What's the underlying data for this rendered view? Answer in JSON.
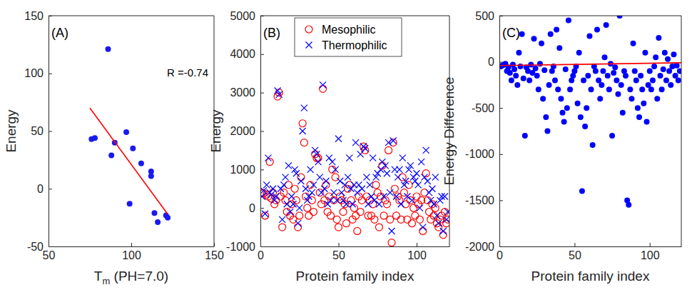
{
  "chart_data": [
    {
      "type": "scatter",
      "annotations": [
        "(A)",
        "R =-0.74"
      ],
      "xlabel": "Tm (PH=7.0)",
      "ylabel": "Energy",
      "xlim": [
        50,
        150
      ],
      "xticks": [
        50,
        100,
        150
      ],
      "ylim": [
        -50,
        150
      ],
      "yticks": [
        -50,
        0,
        50,
        100,
        150
      ],
      "series": [
        {
          "type": "scatter",
          "marker": "dot",
          "color": "#1a1aee",
          "x": [
            76,
            78,
            86,
            88,
            90,
            97,
            99,
            101,
            106,
            112,
            112,
            114,
            116,
            121,
            122
          ],
          "values": [
            43,
            44,
            121,
            29,
            40,
            49,
            -13,
            35,
            22,
            15,
            11,
            -21,
            -29,
            -23,
            -25
          ]
        },
        {
          "type": "line",
          "color": "#ff0000",
          "x": [
            75,
            122
          ],
          "values": [
            70,
            -22
          ]
        }
      ]
    },
    {
      "type": "scatter",
      "annotations": [
        "(B)"
      ],
      "xlabel": "Protein family index",
      "ylabel": "Energy",
      "xlim": [
        0,
        121
      ],
      "xticks": [
        0,
        50,
        100
      ],
      "ylim": [
        -1000,
        5000
      ],
      "yticks": [
        -1000,
        0,
        1000,
        2000,
        3000,
        4000,
        5000
      ],
      "legend": "north",
      "x": [
        1,
        2,
        3,
        4,
        5,
        6,
        7,
        8,
        9,
        10,
        11,
        12,
        13,
        14,
        15,
        16,
        17,
        18,
        19,
        20,
        21,
        22,
        23,
        24,
        25,
        26,
        27,
        28,
        29,
        30,
        31,
        32,
        33,
        34,
        35,
        36,
        37,
        38,
        39,
        40,
        41,
        42,
        43,
        44,
        45,
        46,
        47,
        48,
        49,
        50,
        51,
        52,
        53,
        54,
        55,
        56,
        57,
        58,
        59,
        60,
        61,
        62,
        63,
        64,
        65,
        66,
        67,
        68,
        69,
        70,
        71,
        72,
        73,
        74,
        75,
        76,
        77,
        78,
        79,
        80,
        81,
        82,
        83,
        84,
        85,
        86,
        87,
        88,
        89,
        90,
        91,
        92,
        93,
        94,
        95,
        96,
        97,
        98,
        99,
        100,
        101,
        102,
        103,
        104,
        105,
        106,
        107,
        108,
        109,
        110,
        111,
        112,
        113,
        114,
        115,
        116,
        117,
        118,
        119,
        120
      ],
      "series": [
        {
          "name": "Mesophilic",
          "type": "scatter",
          "marker": "circle",
          "color": "#ff0000",
          "values": [
            400,
            380,
            -200,
            350,
            300,
            1200,
            250,
            400,
            100,
            200,
            2900,
            3000,
            300,
            -500,
            400,
            200,
            -100,
            600,
            -200,
            100,
            -300,
            500,
            200,
            -500,
            -200,
            800,
            2200,
            1700,
            300,
            0,
            -200,
            600,
            200,
            -100,
            1400,
            1300,
            1300,
            400,
            100,
            3100,
            200,
            600,
            -100,
            300,
            -200,
            1000,
            200,
            800,
            -300,
            -500,
            300,
            200,
            -100,
            100,
            -400,
            500,
            600,
            200,
            -300,
            0,
            -200,
            -600,
            300,
            -100,
            200,
            1600,
            1500,
            300,
            -200,
            200,
            -200,
            100,
            -300,
            600,
            400,
            -500,
            300,
            1100,
            -200,
            200,
            100,
            1500,
            -300,
            -900,
            1700,
            500,
            -200,
            300,
            200,
            -300,
            800,
            400,
            100,
            -300,
            600,
            200,
            -400,
            0,
            -200,
            300,
            100,
            -300,
            200,
            -600,
            400,
            900,
            200,
            -100,
            -300,
            100,
            -200,
            0,
            -400,
            -500,
            -300,
            -200,
            -700,
            -100,
            -400,
            -300
          ]
        },
        {
          "name": "Thermophilic",
          "type": "scatter",
          "marker": "x",
          "color": "#0000ff",
          "values": [
            300,
            450,
            -150,
            600,
            1300,
            400,
            350,
            500,
            200,
            300,
            3050,
            2950,
            500,
            -300,
            600,
            800,
            100,
            1100,
            -100,
            300,
            100,
            1000,
            900,
            -400,
            0,
            700,
            2000,
            2600,
            500,
            200,
            300,
            1000,
            400,
            600,
            1500,
            1400,
            1200,
            800,
            400,
            3200,
            500,
            700,
            100,
            1300,
            200,
            1200,
            400,
            1000,
            200,
            1800,
            700,
            400,
            200,
            600,
            100,
            800,
            1300,
            500,
            100,
            600,
            1700,
            400,
            600,
            1400,
            500,
            1600,
            1550,
            800,
            100,
            600,
            300,
            1300,
            200,
            800,
            900,
            100,
            1000,
            1200,
            300,
            1100,
            900,
            1700,
            400,
            -600,
            1750,
            1000,
            300,
            800,
            1000,
            100,
            1300,
            600,
            700,
            300,
            1000,
            1100,
            200,
            800,
            700,
            900,
            600,
            0,
            1200,
            -500,
            800,
            1500,
            700,
            400,
            200,
            500,
            100,
            800,
            -200,
            -400,
            200,
            300,
            -600,
            300,
            -300,
            -100
          ]
        }
      ]
    },
    {
      "type": "scatter",
      "annotations": [
        "(C)"
      ],
      "xlabel": "Protein family index",
      "ylabel": "Energy Difference",
      "xlim": [
        0,
        121
      ],
      "xticks": [
        0,
        50,
        100
      ],
      "ylim": [
        -2000,
        500
      ],
      "yticks": [
        -2000,
        -1500,
        -1000,
        -500,
        0,
        500
      ],
      "x": [
        1,
        2,
        3,
        4,
        5,
        6,
        7,
        8,
        9,
        10,
        11,
        12,
        13,
        14,
        15,
        16,
        17,
        18,
        19,
        20,
        21,
        22,
        23,
        24,
        25,
        26,
        27,
        28,
        29,
        30,
        31,
        32,
        33,
        34,
        35,
        36,
        37,
        38,
        39,
        40,
        41,
        42,
        43,
        44,
        45,
        46,
        47,
        48,
        49,
        50,
        51,
        52,
        53,
        54,
        55,
        56,
        57,
        58,
        59,
        60,
        61,
        62,
        63,
        64,
        65,
        66,
        67,
        68,
        69,
        70,
        71,
        72,
        73,
        74,
        75,
        76,
        77,
        78,
        79,
        80,
        81,
        82,
        83,
        84,
        85,
        86,
        87,
        88,
        89,
        90,
        91,
        92,
        93,
        94,
        95,
        96,
        97,
        98,
        99,
        100,
        101,
        102,
        103,
        104,
        105,
        106,
        107,
        108,
        109,
        110,
        111,
        112,
        113,
        114,
        115,
        116,
        117,
        118,
        119,
        120
      ],
      "series": [
        {
          "type": "scatter",
          "marker": "dot",
          "color": "#0000ff",
          "values": [
            -50,
            -40,
            -30,
            -20,
            -100,
            -60,
            -120,
            -200,
            -30,
            -80,
            -150,
            -250,
            100,
            -50,
            300,
            -180,
            -800,
            -60,
            -100,
            -200,
            -30,
            -120,
            250,
            -70,
            -150,
            -300,
            -20,
            200,
            -400,
            -90,
            -600,
            -750,
            -250,
            300,
            -100,
            -50,
            -200,
            350,
            -300,
            150,
            -400,
            -550,
            -650,
            -80,
            -500,
            450,
            -300,
            -200,
            -150,
            -100,
            -50,
            -450,
            100,
            -600,
            -1400,
            -200,
            -700,
            -500,
            -150,
            280,
            -300,
            -900,
            -50,
            -100,
            350,
            -200,
            -400,
            -250,
            -100,
            50,
            400,
            -150,
            -300,
            -20,
            -800,
            -120,
            -60,
            -200,
            -350,
            500,
            -250,
            -550,
            -100,
            -150,
            -1500,
            -1550,
            -300,
            -400,
            200,
            -100,
            -200,
            -500,
            -600,
            -150,
            -300,
            -450,
            100,
            -650,
            -250,
            -100,
            -300,
            -200,
            -50,
            50,
            -400,
            260,
            -150,
            -300,
            -80,
            100,
            -200,
            30,
            -100,
            -250,
            -50,
            80,
            -150,
            -40,
            -200,
            -100
          ]
        },
        {
          "type": "line",
          "color": "#ff0000",
          "x": [
            0,
            121
          ],
          "values": [
            -40,
            -10
          ]
        }
      ]
    }
  ]
}
